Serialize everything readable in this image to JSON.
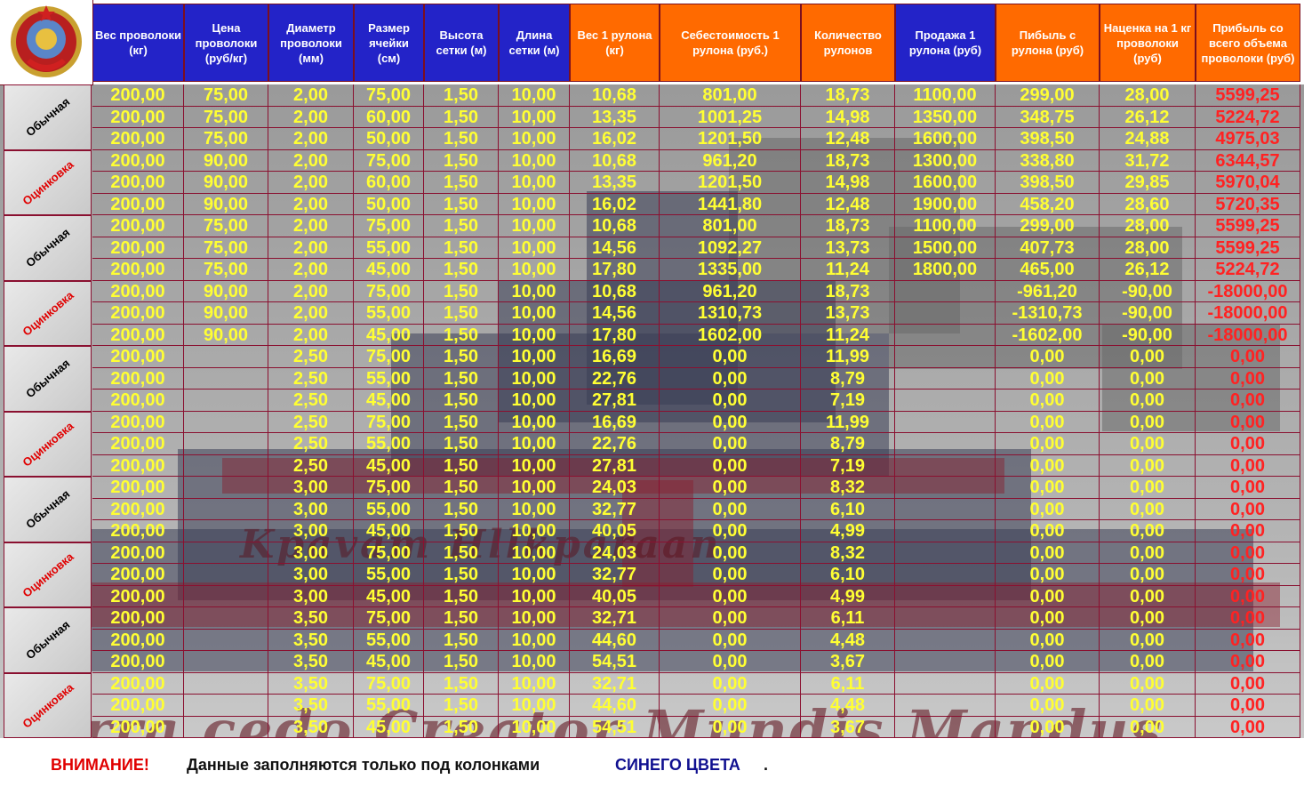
{
  "headers": [
    "Вес проволоки (кг)",
    "Цена проволоки (руб/кг)",
    "Диаметр проволоки (мм)",
    "Размер ячейки (см)",
    "Высота сетки (м)",
    "Длина сетки (м)",
    "Вес 1 рулона (кг)",
    "Себестоимость 1 рулона (руб.)",
    "Количество рулонов",
    "Продажа 1 рулона (руб)",
    "Пибыль с рулона (руб)",
    "Наценка на 1 кг проволоки (руб)",
    "Прибыль со всего объема проволоки (руб)"
  ],
  "header_colors": [
    "blue",
    "blue",
    "blue",
    "blue",
    "blue",
    "blue",
    "orange",
    "orange",
    "orange",
    "blue",
    "orange",
    "orange",
    "orange"
  ],
  "groups": [
    {
      "label": "Обычная",
      "type": "plain"
    },
    {
      "label": "Оцинковка",
      "type": "zinc"
    },
    {
      "label": "Обычная",
      "type": "plain"
    },
    {
      "label": "Оцинковка",
      "type": "zinc"
    },
    {
      "label": "Обычная",
      "type": "plain"
    },
    {
      "label": "Оцинковка",
      "type": "zinc"
    },
    {
      "label": "Обычная",
      "type": "plain"
    },
    {
      "label": "Оцинковка",
      "type": "zinc"
    },
    {
      "label": "Обычная",
      "type": "plain"
    },
    {
      "label": "Оцинковка",
      "type": "zinc"
    }
  ],
  "rows": [
    [
      "200,00",
      "75,00",
      "2,00",
      "75,00",
      "1,50",
      "10,00",
      "10,68",
      "801,00",
      "18,73",
      "1100,00",
      "299,00",
      "28,00",
      "5599,25"
    ],
    [
      "200,00",
      "75,00",
      "2,00",
      "60,00",
      "1,50",
      "10,00",
      "13,35",
      "1001,25",
      "14,98",
      "1350,00",
      "348,75",
      "26,12",
      "5224,72"
    ],
    [
      "200,00",
      "75,00",
      "2,00",
      "50,00",
      "1,50",
      "10,00",
      "16,02",
      "1201,50",
      "12,48",
      "1600,00",
      "398,50",
      "24,88",
      "4975,03"
    ],
    [
      "200,00",
      "90,00",
      "2,00",
      "75,00",
      "1,50",
      "10,00",
      "10,68",
      "961,20",
      "18,73",
      "1300,00",
      "338,80",
      "31,72",
      "6344,57"
    ],
    [
      "200,00",
      "90,00",
      "2,00",
      "60,00",
      "1,50",
      "10,00",
      "13,35",
      "1201,50",
      "14,98",
      "1600,00",
      "398,50",
      "29,85",
      "5970,04"
    ],
    [
      "200,00",
      "90,00",
      "2,00",
      "50,00",
      "1,50",
      "10,00",
      "16,02",
      "1441,80",
      "12,48",
      "1900,00",
      "458,20",
      "28,60",
      "5720,35"
    ],
    [
      "200,00",
      "75,00",
      "2,00",
      "75,00",
      "1,50",
      "10,00",
      "10,68",
      "801,00",
      "18,73",
      "1100,00",
      "299,00",
      "28,00",
      "5599,25"
    ],
    [
      "200,00",
      "75,00",
      "2,00",
      "55,00",
      "1,50",
      "10,00",
      "14,56",
      "1092,27",
      "13,73",
      "1500,00",
      "407,73",
      "28,00",
      "5599,25"
    ],
    [
      "200,00",
      "75,00",
      "2,00",
      "45,00",
      "1,50",
      "10,00",
      "17,80",
      "1335,00",
      "11,24",
      "1800,00",
      "465,00",
      "26,12",
      "5224,72"
    ],
    [
      "200,00",
      "90,00",
      "2,00",
      "75,00",
      "1,50",
      "10,00",
      "10,68",
      "961,20",
      "18,73",
      "",
      "-961,20",
      "-90,00",
      "-18000,00"
    ],
    [
      "200,00",
      "90,00",
      "2,00",
      "55,00",
      "1,50",
      "10,00",
      "14,56",
      "1310,73",
      "13,73",
      "",
      "-1310,73",
      "-90,00",
      "-18000,00"
    ],
    [
      "200,00",
      "90,00",
      "2,00",
      "45,00",
      "1,50",
      "10,00",
      "17,80",
      "1602,00",
      "11,24",
      "",
      "-1602,00",
      "-90,00",
      "-18000,00"
    ],
    [
      "200,00",
      "",
      "2,50",
      "75,00",
      "1,50",
      "10,00",
      "16,69",
      "0,00",
      "11,99",
      "",
      "0,00",
      "0,00",
      "0,00"
    ],
    [
      "200,00",
      "",
      "2,50",
      "55,00",
      "1,50",
      "10,00",
      "22,76",
      "0,00",
      "8,79",
      "",
      "0,00",
      "0,00",
      "0,00"
    ],
    [
      "200,00",
      "",
      "2,50",
      "45,00",
      "1,50",
      "10,00",
      "27,81",
      "0,00",
      "7,19",
      "",
      "0,00",
      "0,00",
      "0,00"
    ],
    [
      "200,00",
      "",
      "2,50",
      "75,00",
      "1,50",
      "10,00",
      "16,69",
      "0,00",
      "11,99",
      "",
      "0,00",
      "0,00",
      "0,00"
    ],
    [
      "200,00",
      "",
      "2,50",
      "55,00",
      "1,50",
      "10,00",
      "22,76",
      "0,00",
      "8,79",
      "",
      "0,00",
      "0,00",
      "0,00"
    ],
    [
      "200,00",
      "",
      "2,50",
      "45,00",
      "1,50",
      "10,00",
      "27,81",
      "0,00",
      "7,19",
      "",
      "0,00",
      "0,00",
      "0,00"
    ],
    [
      "200,00",
      "",
      "3,00",
      "75,00",
      "1,50",
      "10,00",
      "24,03",
      "0,00",
      "8,32",
      "",
      "0,00",
      "0,00",
      "0,00"
    ],
    [
      "200,00",
      "",
      "3,00",
      "55,00",
      "1,50",
      "10,00",
      "32,77",
      "0,00",
      "6,10",
      "",
      "0,00",
      "0,00",
      "0,00"
    ],
    [
      "200,00",
      "",
      "3,00",
      "45,00",
      "1,50",
      "10,00",
      "40,05",
      "0,00",
      "4,99",
      "",
      "0,00",
      "0,00",
      "0,00"
    ],
    [
      "200,00",
      "",
      "3,00",
      "75,00",
      "1,50",
      "10,00",
      "24,03",
      "0,00",
      "8,32",
      "",
      "0,00",
      "0,00",
      "0,00"
    ],
    [
      "200,00",
      "",
      "3,00",
      "55,00",
      "1,50",
      "10,00",
      "32,77",
      "0,00",
      "6,10",
      "",
      "0,00",
      "0,00",
      "0,00"
    ],
    [
      "200,00",
      "",
      "3,00",
      "45,00",
      "1,50",
      "10,00",
      "40,05",
      "0,00",
      "4,99",
      "",
      "0,00",
      "0,00",
      "0,00"
    ],
    [
      "200,00",
      "",
      "3,50",
      "75,00",
      "1,50",
      "10,00",
      "32,71",
      "0,00",
      "6,11",
      "",
      "0,00",
      "0,00",
      "0,00"
    ],
    [
      "200,00",
      "",
      "3,50",
      "55,00",
      "1,50",
      "10,00",
      "44,60",
      "0,00",
      "4,48",
      "",
      "0,00",
      "0,00",
      "0,00"
    ],
    [
      "200,00",
      "",
      "3,50",
      "45,00",
      "1,50",
      "10,00",
      "54,51",
      "0,00",
      "3,67",
      "",
      "0,00",
      "0,00",
      "0,00"
    ],
    [
      "200,00",
      "",
      "3,50",
      "75,00",
      "1,50",
      "10,00",
      "32,71",
      "0,00",
      "6,11",
      "",
      "0,00",
      "0,00",
      "0,00"
    ],
    [
      "200,00",
      "",
      "3,50",
      "55,00",
      "1,50",
      "10,00",
      "44,60",
      "0,00",
      "4,48",
      "",
      "0,00",
      "0,00",
      "0,00"
    ],
    [
      "200,00",
      "",
      "3,50",
      "45,00",
      "1,50",
      "10,00",
      "54,51",
      "0,00",
      "3,67",
      "",
      "0,00",
      "0,00",
      "0,00"
    ]
  ],
  "footer": {
    "warning": "ВНИМАНИЕ!",
    "note": "Данные заполняются только под колонками",
    "highlight": "СИНЕГО ЦВЕТА",
    "end": "."
  },
  "background_motto": "Terra cedo Creator Mundis Mandus",
  "colors": {
    "header_blue": "#2323c8",
    "header_orange": "#ff6a00",
    "value_yellow": "#ffff33",
    "value_red": "#ff2222",
    "warning_red": "#e00000",
    "highlight_blue": "#101090"
  }
}
